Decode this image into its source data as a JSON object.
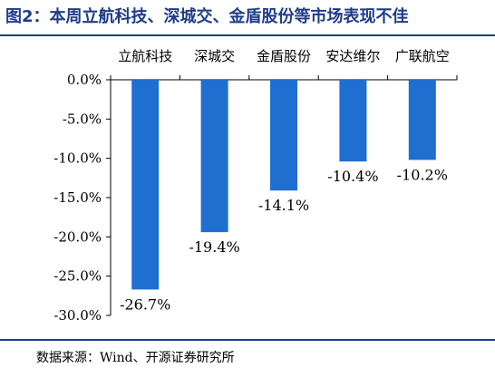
{
  "title": "图2：本周立航科技、深城交、金盾股份等市场表现不佳",
  "source": "数据来源：Wind、开源证券研究所",
  "chart_data": {
    "type": "bar",
    "categories": [
      "立航科技",
      "深城交",
      "金盾股份",
      "安达维尔",
      "广联航空"
    ],
    "values": [
      -26.7,
      -19.4,
      -14.1,
      -10.4,
      -10.2
    ],
    "data_labels": [
      "-26.7%",
      "-19.4%",
      "-14.1%",
      "-10.4%",
      "-10.2%"
    ],
    "ylim": [
      -30,
      0
    ],
    "yticks": [
      0,
      -5,
      -10,
      -15,
      -20,
      -25,
      -30
    ],
    "ytick_labels": [
      "0.0%",
      "-5.0%",
      "-10.0%",
      "-15.0%",
      "-20.0%",
      "-25.0%",
      "-30.0%"
    ],
    "bar_color": "#1f6fd1",
    "grid": false,
    "legend": "none"
  }
}
